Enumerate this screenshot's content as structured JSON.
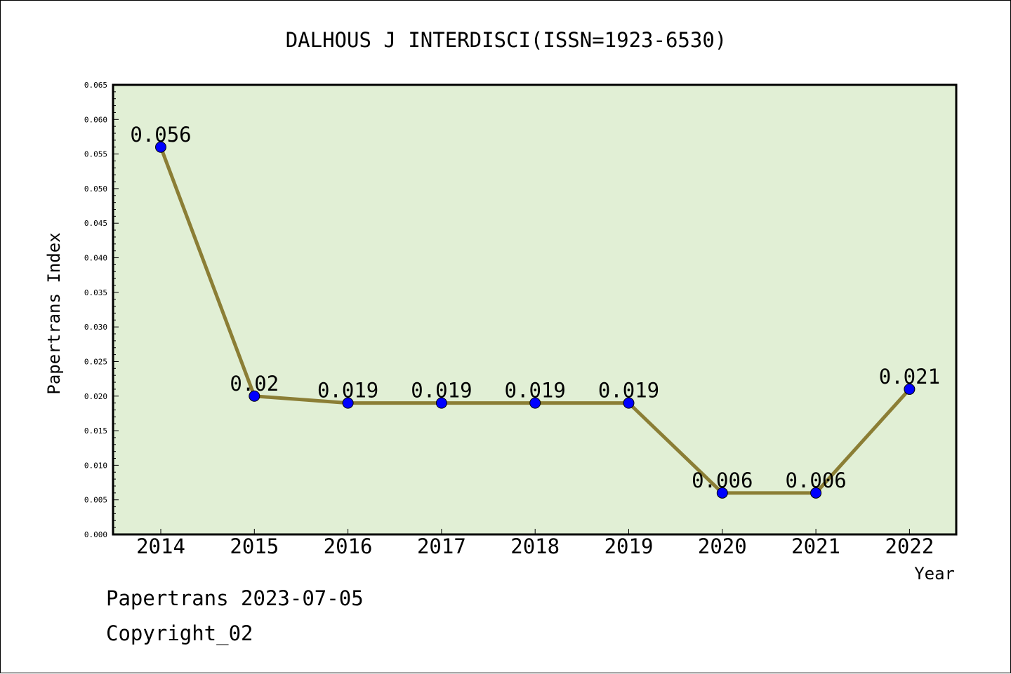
{
  "chart_data": {
    "type": "line",
    "title": "DALHOUS J INTERDISCI(ISSN=1923-6530)",
    "xlabel": "Year",
    "ylabel": "Papertrans Index",
    "categories": [
      "2014",
      "2015",
      "2016",
      "2017",
      "2018",
      "2019",
      "2020",
      "2021",
      "2022"
    ],
    "values": [
      0.056,
      0.02,
      0.019,
      0.019,
      0.019,
      0.019,
      0.006,
      0.006,
      0.021
    ],
    "data_labels": [
      "0.056",
      "0.02",
      "0.019",
      "0.019",
      "0.019",
      "0.019",
      "0.006",
      "0.006",
      "0.021"
    ],
    "ylim": [
      0,
      0.065
    ],
    "yticks": [
      "0.000",
      "0.005",
      "0.010",
      "0.015",
      "0.020",
      "0.025",
      "0.030",
      "0.035",
      "0.040",
      "0.045",
      "0.050",
      "0.055",
      "0.060",
      "0.065"
    ],
    "grid": false,
    "legend": "none",
    "colors": {
      "plot_background": "#e1efd5",
      "line": "#8b7e35",
      "marker": "#0000ff"
    }
  },
  "footer": {
    "line1": "Papertrans 2023-07-05",
    "line2": "Copyright_02"
  }
}
